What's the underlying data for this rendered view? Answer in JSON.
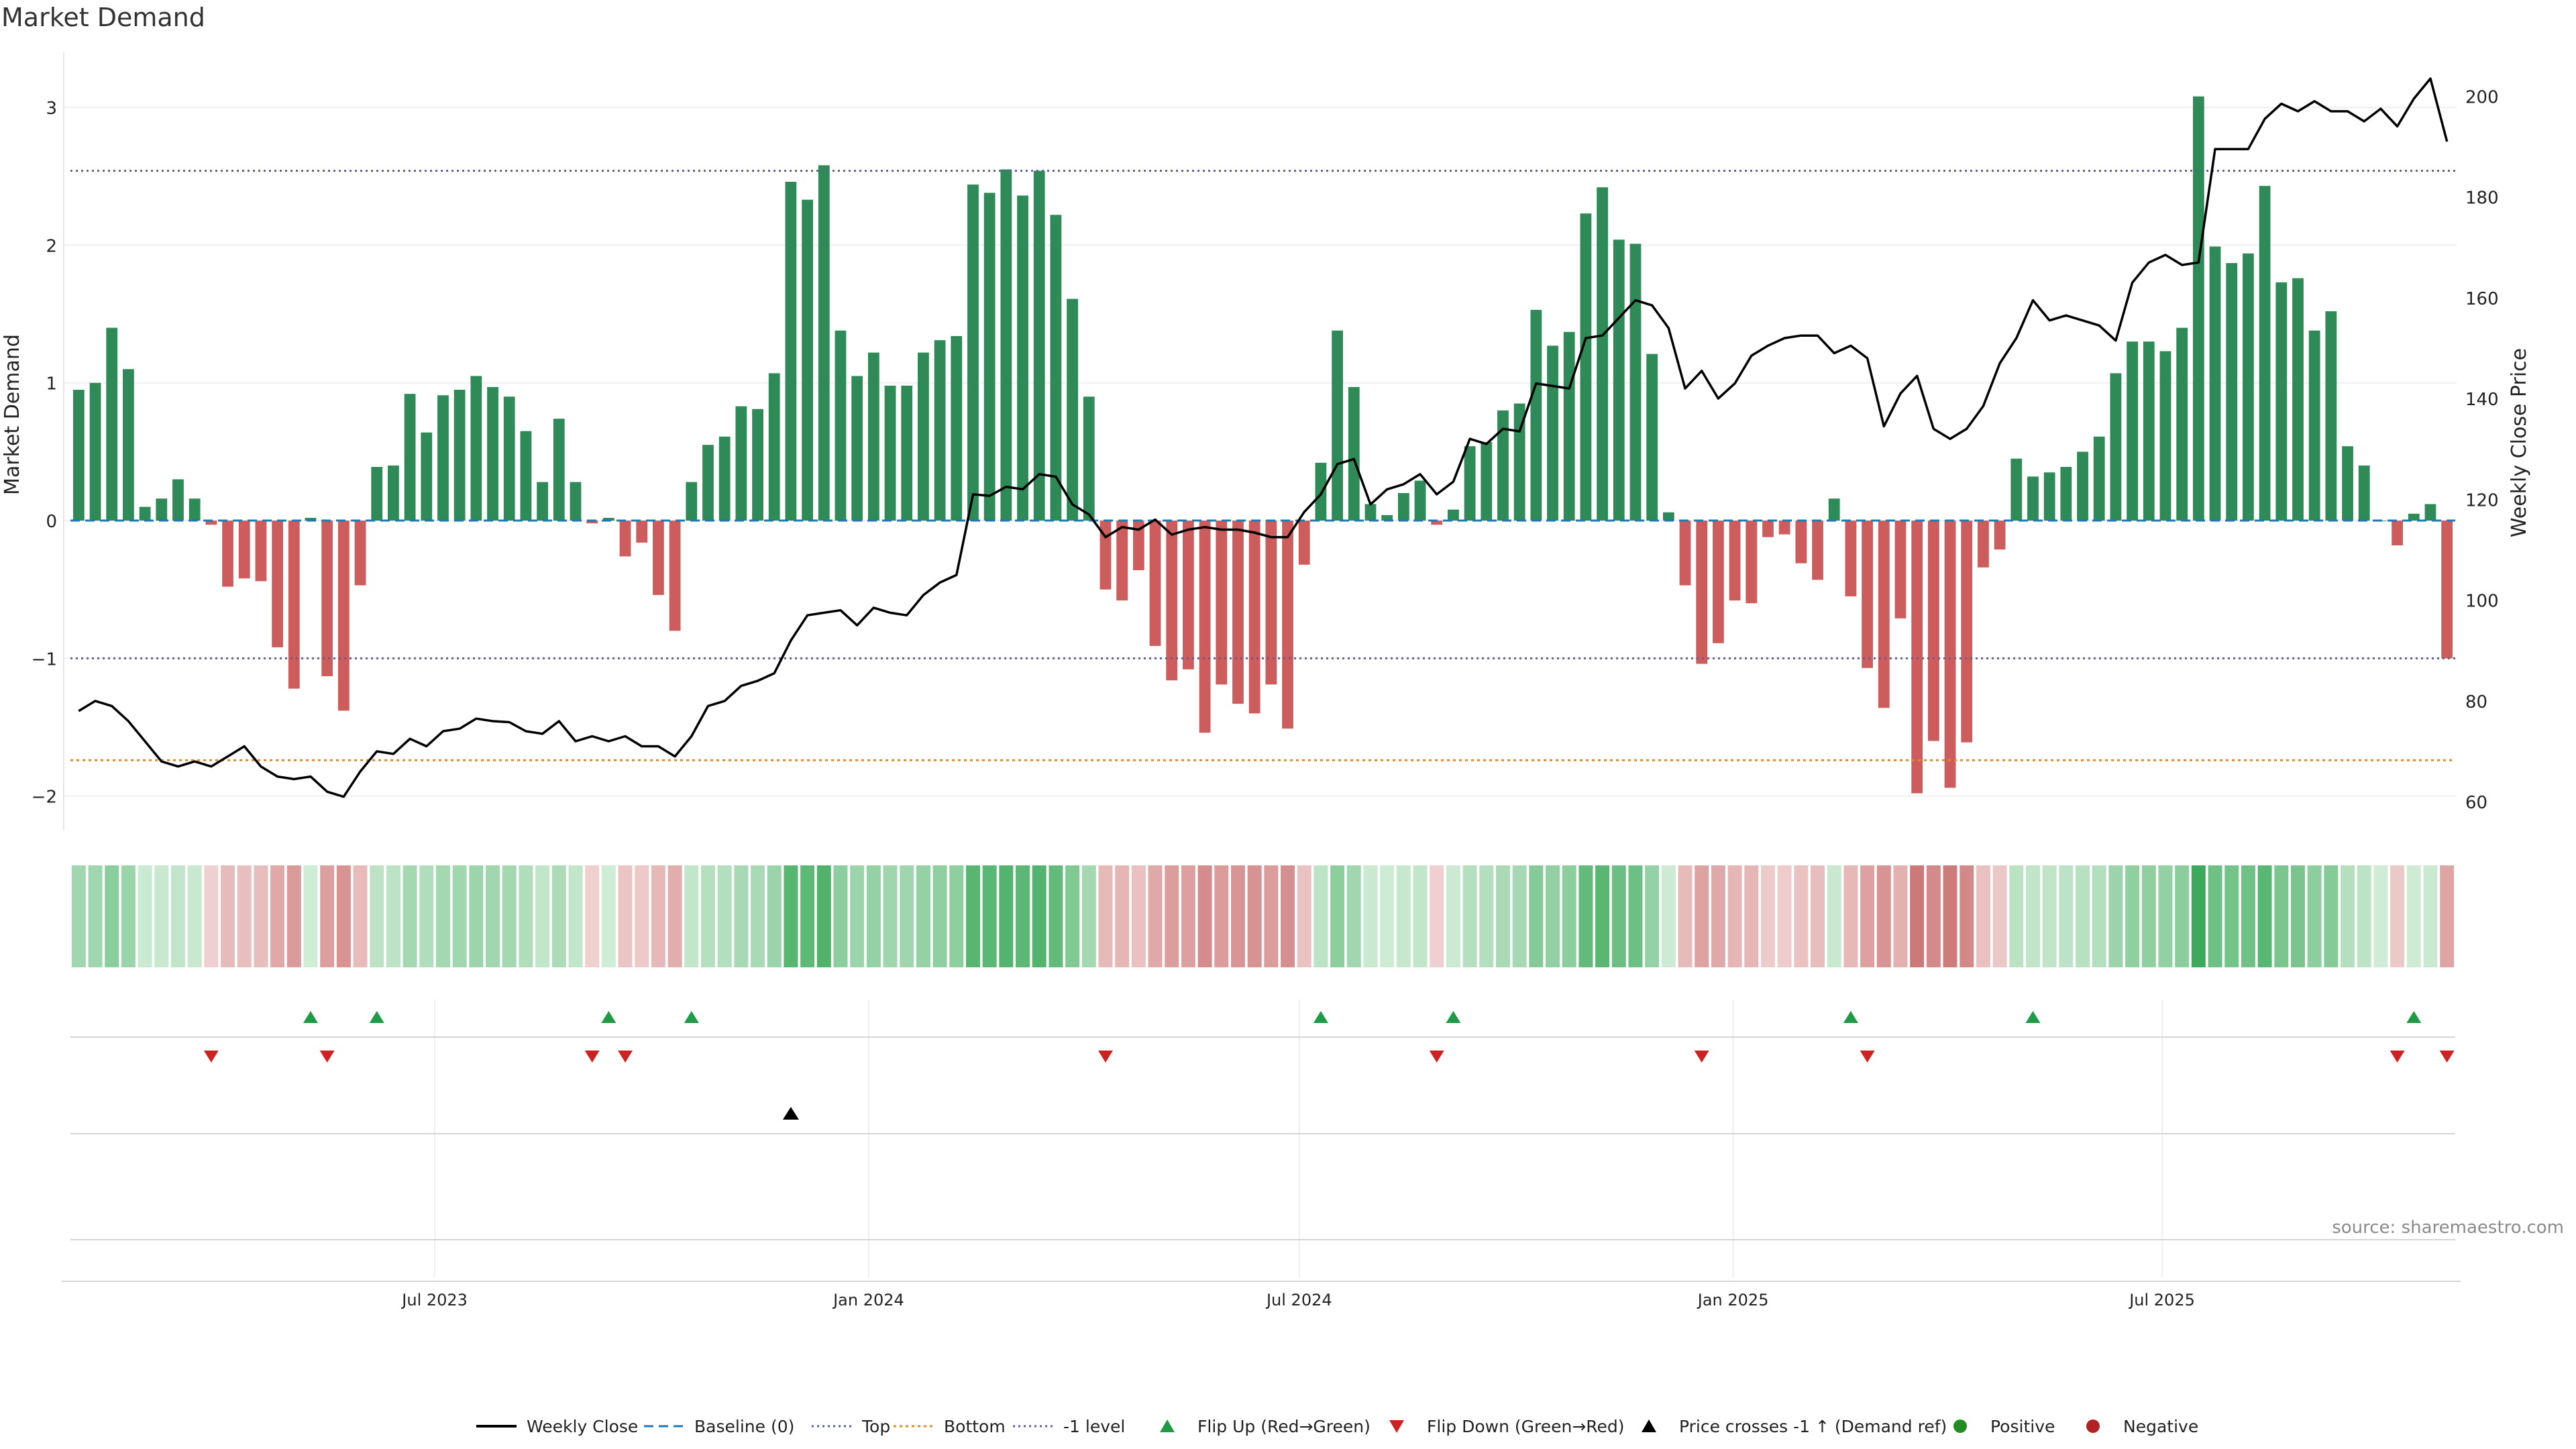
{
  "title": "Market Demand",
  "source": "source: sharemaestro.com",
  "colors": {
    "positive": "#2e8b57",
    "negative": "#cd5c5c",
    "price": "#000000",
    "baseline": "#1f77b4",
    "top": "#5b5ea6",
    "bottom": "#e08a2c",
    "minus1": "#5b5ea6",
    "flip_up": "#1e9b44",
    "flip_down": "#cc2222",
    "cross": "#000000",
    "positive_dot": "#228b22",
    "negative_dot": "#b22222"
  },
  "chart_data": {
    "type": "bar",
    "x_start": "2023-01-02",
    "x_end": "2025-11-24",
    "week_count": 144,
    "left_axis": {
      "label": "Market Demand",
      "range": [
        -2.25,
        3.4
      ],
      "ticks": [
        3,
        2,
        1,
        0,
        -1,
        -2
      ],
      "tick_labels": [
        "3",
        "2",
        "1",
        "0",
        "−1",
        "−2"
      ]
    },
    "right_axis": {
      "label": "Weekly Close Price",
      "range": [
        54.3,
        208.7
      ],
      "ticks": [
        200,
        180,
        160,
        140,
        120,
        100,
        80,
        60
      ],
      "tick_labels": [
        "200",
        "180",
        "160",
        "140",
        "120",
        "100",
        "80",
        "60"
      ]
    },
    "x_ticks": [
      {
        "label": "Jul 2023",
        "week": 21.5
      },
      {
        "label": "Jan 2024",
        "week": 47.7
      },
      {
        "label": "Jul 2024",
        "week": 73.7
      },
      {
        "label": "Jan 2025",
        "week": 99.9
      },
      {
        "label": "Jul 2025",
        "week": 125.8
      }
    ],
    "reference_levels": {
      "top": 2.54,
      "bottom": -1.74,
      "minus1": -1.0,
      "baseline": 0
    },
    "demand": [
      0.95,
      1.0,
      1.4,
      1.1,
      0.1,
      0.16,
      0.3,
      0.16,
      -0.03,
      -0.48,
      -0.42,
      -0.44,
      -0.92,
      -1.22,
      0.02,
      -1.13,
      -1.38,
      -0.47,
      0.39,
      0.4,
      0.92,
      0.64,
      0.91,
      0.95,
      1.05,
      0.97,
      0.9,
      0.65,
      0.28,
      0.74,
      0.28,
      -0.02,
      0.02,
      -0.26,
      -0.16,
      -0.54,
      -0.8,
      0.28,
      0.55,
      0.61,
      0.83,
      0.81,
      1.07,
      2.46,
      2.33,
      2.58,
      1.38,
      1.05,
      1.22,
      0.98,
      0.98,
      1.22,
      1.31,
      1.34,
      2.44,
      2.38,
      2.55,
      2.36,
      2.54,
      2.22,
      1.61,
      0.9,
      -0.5,
      -0.58,
      -0.36,
      -0.91,
      -1.16,
      -1.08,
      -1.54,
      -1.19,
      -1.33,
      -1.4,
      -1.19,
      -1.51,
      -0.32,
      0.42,
      1.38,
      0.97,
      0.12,
      0.04,
      0.2,
      0.29,
      -0.03,
      0.08,
      0.54,
      0.57,
      0.8,
      0.85,
      1.53,
      1.27,
      1.37,
      2.23,
      2.42,
      2.04,
      2.01,
      1.21,
      0.06,
      -0.47,
      -1.04,
      -0.89,
      -0.58,
      -0.6,
      -0.12,
      -0.1,
      -0.31,
      -0.43,
      0.16,
      -0.55,
      -1.07,
      -1.36,
      -0.71,
      -1.98,
      -1.6,
      -1.94,
      -1.61,
      -0.34,
      -0.21,
      0.45,
      0.32,
      0.35,
      0.39,
      0.5,
      0.61,
      1.07,
      1.3,
      1.3,
      1.23,
      1.4,
      3.08,
      1.99,
      1.87,
      1.94,
      2.43,
      1.73,
      1.76,
      1.38,
      1.52,
      0.54,
      0.4,
      0.0,
      -0.18,
      0.05,
      0.12,
      -1.0
    ],
    "weekly_close": [
      78,
      80,
      79,
      76,
      72,
      68,
      67,
      68,
      67,
      69,
      71,
      67,
      65,
      64.5,
      65,
      62,
      61,
      66,
      70,
      69.5,
      72.5,
      71,
      74,
      74.5,
      76.5,
      76,
      75.8,
      74,
      73.5,
      76,
      72,
      73,
      72,
      73,
      71,
      71,
      69,
      73,
      79,
      80,
      83,
      84,
      85.5,
      92,
      97,
      97.5,
      98,
      95,
      98.5,
      97.5,
      97,
      101,
      103.5,
      105,
      121,
      120.7,
      122.5,
      122,
      125,
      124.5,
      119,
      117,
      112.5,
      114.5,
      114,
      116,
      113,
      114,
      114.5,
      114,
      114,
      113.4,
      112.5,
      112.5,
      117.5,
      121,
      127,
      128,
      119,
      122,
      123,
      125,
      121,
      123.5,
      132,
      131,
      134,
      133.5,
      143,
      142.5,
      142,
      152,
      152.5,
      156,
      159.5,
      158.5,
      154,
      142,
      145.5,
      140,
      143,
      148.5,
      150.5,
      152,
      152.5,
      152.5,
      149,
      150.5,
      148,
      134.5,
      141,
      144.5,
      134,
      132,
      134,
      138.5,
      147,
      152,
      159.5,
      155.5,
      156.5,
      155.5,
      154.5,
      151.5,
      163,
      167,
      168.5,
      166.5,
      167,
      189.5,
      189.5,
      189.5,
      195.5,
      198.5,
      197,
      199,
      197,
      197,
      195,
      197.5,
      194,
      199.5,
      203.5,
      191
    ],
    "flip_up_weeks": [
      14,
      18,
      32,
      37,
      75,
      83,
      107,
      118,
      141
    ],
    "flip_down_weeks": [
      8,
      15,
      31,
      33,
      62,
      82,
      98,
      108,
      140,
      143
    ],
    "price_cross_weeks": [
      43
    ],
    "legend": [
      "Weekly Close",
      "Baseline (0)",
      "Top",
      "Bottom",
      "-1 level",
      "Flip Up (Red→Green)",
      "Flip Down (Green→Red)",
      "Price crosses -1 ↑ (Demand ref)",
      "Positive",
      "Negative"
    ]
  }
}
